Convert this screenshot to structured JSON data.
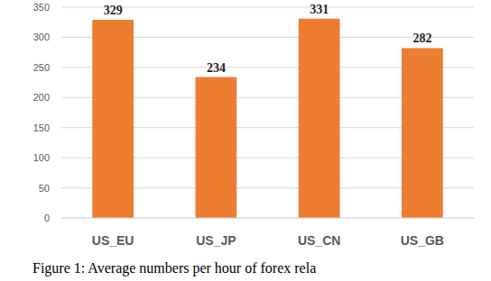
{
  "chart_data": {
    "type": "bar",
    "title": "Figure 1: Average numbers per hour of forex rela",
    "categories": [
      "US_EU",
      "US_JP",
      "US_CN",
      "US_GB"
    ],
    "values": [
      329,
      234,
      331,
      282
    ],
    "color": "#ed7d31",
    "ylim": [
      0,
      350
    ],
    "yticks": [
      0,
      50,
      100,
      150,
      200,
      250,
      300,
      350
    ],
    "grid": true,
    "data_labels": true
  }
}
